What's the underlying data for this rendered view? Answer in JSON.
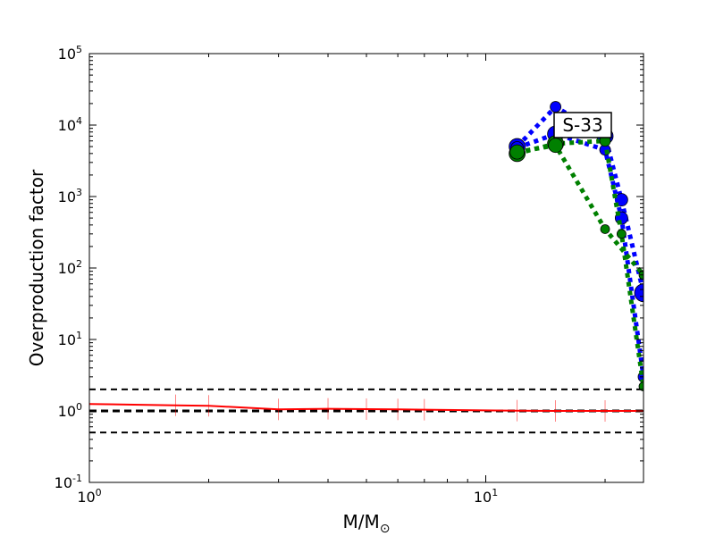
{
  "chart_data": {
    "type": "line",
    "title": "",
    "xlabel": "M/M",
    "xlabel_sub": "⊙",
    "ylabel": "Overproduction factor",
    "xscale": "log",
    "yscale": "log",
    "xlim": [
      1,
      25
    ],
    "ylim": [
      0.1,
      100000
    ],
    "x_ticks": [
      {
        "value": 1,
        "base": "10",
        "exp": "0"
      },
      {
        "value": 10,
        "base": "10",
        "exp": "1"
      }
    ],
    "y_ticks": [
      {
        "value": 0.1,
        "base": "10",
        "exp": "-1"
      },
      {
        "value": 1,
        "base": "10",
        "exp": "0"
      },
      {
        "value": 10,
        "base": "10",
        "exp": "1"
      },
      {
        "value": 100,
        "base": "10",
        "exp": "2"
      },
      {
        "value": 1000,
        "base": "10",
        "exp": "3"
      },
      {
        "value": 10000,
        "base": "10",
        "exp": "4"
      },
      {
        "value": 100000,
        "base": "10",
        "exp": "5"
      }
    ],
    "annotation": "S-33",
    "reference_lines": [
      0.5,
      1,
      2
    ],
    "series": [
      {
        "color": "#ff0000",
        "style": "solid",
        "x": [
          1,
          1.65,
          2,
          3,
          4,
          5,
          6,
          7,
          12,
          15,
          20,
          25
        ],
        "y": [
          1.25,
          1.2,
          1.18,
          1.05,
          1.07,
          1.06,
          1.05,
          1.04,
          1.01,
          1.0,
          1.0,
          1.0
        ],
        "marker": "errorbar"
      },
      {
        "color": "#0000ff",
        "style": "dotted",
        "x": [
          12,
          15,
          20,
          22,
          25
        ],
        "y": [
          5000,
          18000,
          7000,
          900,
          45
        ],
        "sizes": [
          9,
          6,
          9,
          7,
          10
        ]
      },
      {
        "color": "#0000ff",
        "style": "dotted",
        "x": [
          12,
          15,
          20,
          22,
          25
        ],
        "y": [
          4800,
          7500,
          4500,
          500,
          3
        ],
        "sizes": [
          7,
          9,
          6,
          7,
          6
        ]
      },
      {
        "color": "#008000",
        "style": "dotted",
        "x": [
          12,
          15,
          20,
          22,
          25
        ],
        "y": [
          4000,
          5500,
          6000,
          300,
          2.2
        ],
        "sizes": [
          9,
          9,
          6,
          5,
          5
        ]
      },
      {
        "color": "#008000",
        "style": "dotted",
        "x": [
          12,
          15,
          20,
          25
        ],
        "y": [
          4200,
          5200,
          350,
          80
        ],
        "sizes": [
          8,
          8,
          5,
          5
        ]
      }
    ]
  }
}
